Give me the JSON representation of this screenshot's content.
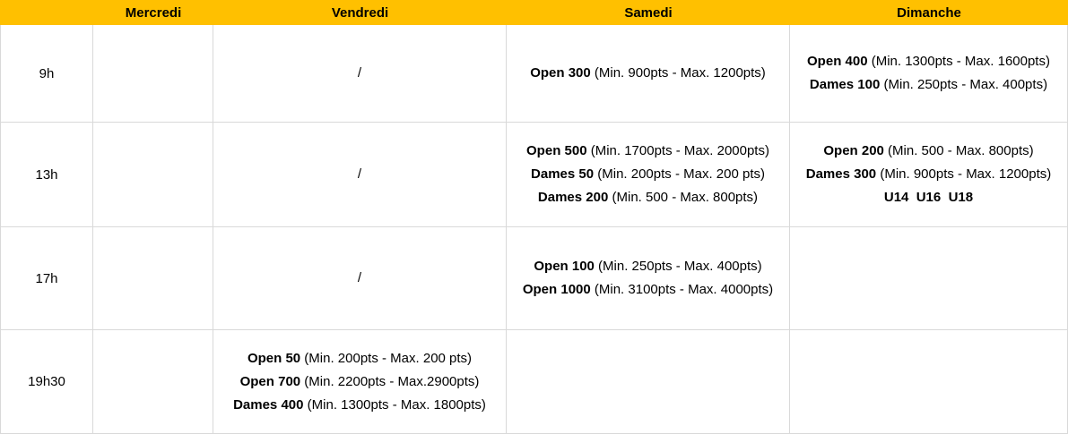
{
  "colors": {
    "header_bg": "#FFC000",
    "grid_border": "#D9D9D9",
    "text": "#000000"
  },
  "header": {
    "day_columns": [
      "Mercredi",
      "Vendredi",
      "Samedi",
      "Dimanche"
    ]
  },
  "schedule": {
    "rows": [
      {
        "time": "9h",
        "mercredi": {
          "events": []
        },
        "vendredi": {
          "placeholder": "/"
        },
        "samedi": {
          "events": [
            {
              "name": "Open 300",
              "details": " (Min. 900pts - Max. 1200pts)"
            }
          ]
        },
        "dimanche": {
          "events": [
            {
              "name": "Open 400",
              "details": " (Min. 1300pts - Max. 1600pts)"
            },
            {
              "name": "Dames 100",
              "details": " (Min. 250pts - Max. 400pts)"
            }
          ]
        }
      },
      {
        "time": "13h",
        "mercredi": {
          "events": []
        },
        "vendredi": {
          "placeholder": "/"
        },
        "samedi": {
          "events": [
            {
              "name": "Open 500",
              "details": " (Min. 1700pts - Max. 2000pts)"
            },
            {
              "name": "Dames 50",
              "details": " (Min. 200pts - Max. 200 pts)"
            },
            {
              "name": "Dames 200",
              "details": " (Min. 500 - Max. 800pts)"
            }
          ]
        },
        "dimanche": {
          "events": [
            {
              "name": "Open 200",
              "details": " (Min. 500 - Max. 800pts)"
            },
            {
              "name": "Dames 300",
              "details": " (Min. 900pts - Max. 1200pts)"
            },
            {
              "name": "U14  U16  U18",
              "details": ""
            }
          ]
        }
      },
      {
        "time": "17h",
        "mercredi": {
          "events": []
        },
        "vendredi": {
          "placeholder": "/"
        },
        "samedi": {
          "events": [
            {
              "name": "Open 100",
              "details": " (Min. 250pts - Max. 400pts)"
            },
            {
              "name": "Open 1000",
              "details": " (Min. 3100pts - Max. 4000pts)"
            }
          ]
        },
        "dimanche": {
          "events": []
        }
      },
      {
        "time": "19h30",
        "mercredi": {
          "events": []
        },
        "vendredi": {
          "events": [
            {
              "name": "Open 50",
              "details": " (Min. 200pts - Max. 200 pts)"
            },
            {
              "name": "Open 700",
              "details": " (Min. 2200pts - Max.2900pts)"
            },
            {
              "name": "Dames 400",
              "details": " (Min. 1300pts - Max. 1800pts)"
            }
          ]
        },
        "samedi": {
          "events": []
        },
        "dimanche": {
          "events": []
        }
      }
    ]
  }
}
